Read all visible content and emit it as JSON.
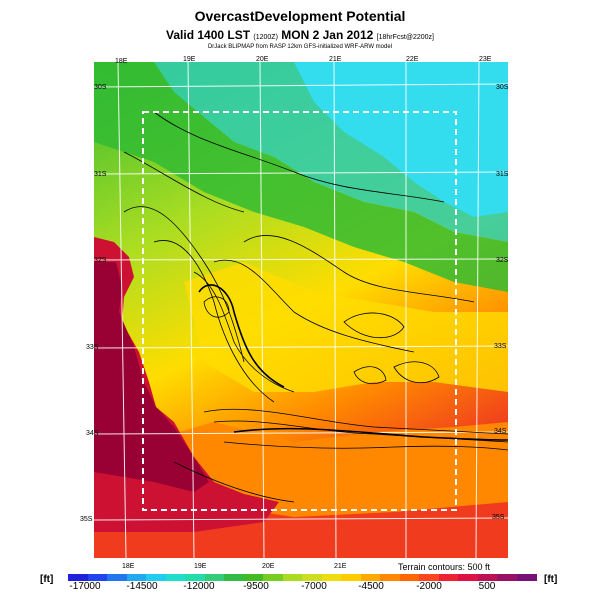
{
  "header": {
    "title": "OvercastDevelopment Potential",
    "valid_main": "Valid 1400 LST",
    "valid_zulu": "(1200Z)",
    "valid_date": "MON 2 Jan 2012",
    "forecast": "[18hrFcst@2200z]",
    "credit": "DrJack BLIPMAP from RASP 12km GFS-initialized WRF-ARW model"
  },
  "map": {
    "top_lon_labels": [
      "18E",
      "19E",
      "20E",
      "21E",
      "22E",
      "23E"
    ],
    "bottom_lon_labels": [
      "18E",
      "19E",
      "20E",
      "21E"
    ],
    "left_lat_labels": [
      "30S",
      "31S",
      "32S",
      "33S",
      "34S",
      "35S"
    ],
    "right_lat_labels": [
      "30S",
      "31S",
      "32S",
      "33S",
      "34S",
      "35S"
    ],
    "contour_note": "Terrain contours: 500 ft",
    "colors": {
      "ocean": "#cc1133",
      "ocean_deep": "#990033",
      "low": "#ee3322",
      "mid_orange": "#ff8800",
      "yellow": "#ffdd00",
      "lime": "#aadd22",
      "green": "#33bb33",
      "teal": "#33ccaa",
      "cyan": "#33ddee"
    }
  },
  "colorbar": {
    "unit_left": "[ft]",
    "unit_right": "[ft]",
    "labels": [
      "-17000",
      "-14500",
      "-12000",
      "-9500",
      "-7000",
      "-4500",
      "-2000",
      "500"
    ],
    "colors": [
      "#2222dd",
      "#2244ee",
      "#2277ee",
      "#22aaee",
      "#22ccee",
      "#22ddcc",
      "#22ddaa",
      "#33cc77",
      "#33bb44",
      "#44bb22",
      "#77cc22",
      "#aadd22",
      "#ccdd22",
      "#eedd11",
      "#ffcc00",
      "#ffaa00",
      "#ff8800",
      "#ff6600",
      "#ff4422",
      "#ee2233",
      "#dd1144",
      "#bb1155",
      "#991166",
      "#771177"
    ]
  }
}
